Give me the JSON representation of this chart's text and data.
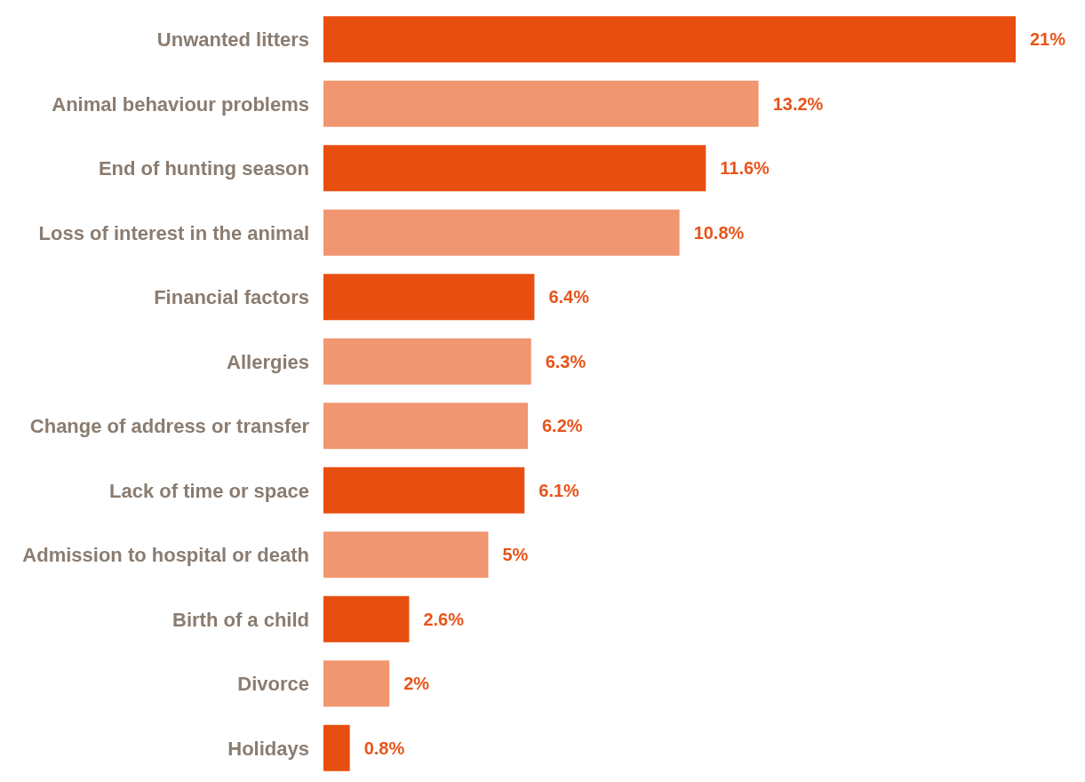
{
  "chart_data": {
    "type": "bar",
    "orientation": "horizontal",
    "tick_labels": "y",
    "categories": [
      "Unwanted litters",
      "Animal behaviour problems",
      "End of hunting season",
      "Loss of interest in the animal",
      "Financial factors",
      "Allergies",
      "Change of address or transfer",
      "Lack of time or space",
      "Admission to hospital or death",
      "Birth of a child",
      "Divorce",
      "Holidays"
    ],
    "values": [
      21,
      13.2,
      11.6,
      10.8,
      6.4,
      6.3,
      6.2,
      6.1,
      5,
      2.6,
      2,
      0.8
    ],
    "value_labels": [
      "21%",
      "13.2%",
      "11.6%",
      "10.8%",
      "6.4%",
      "6.3%",
      "6.2%",
      "6.1%",
      "5%",
      "2.6%",
      "2%",
      "0.8%"
    ],
    "colors": [
      "#e84e0f",
      "#f09670",
      "#e84e0f",
      "#f09670",
      "#e84e0f",
      "#f09670",
      "#f09670",
      "#e84e0f",
      "#f09670",
      "#e84e0f",
      "#f09670",
      "#e84e0f"
    ]
  }
}
